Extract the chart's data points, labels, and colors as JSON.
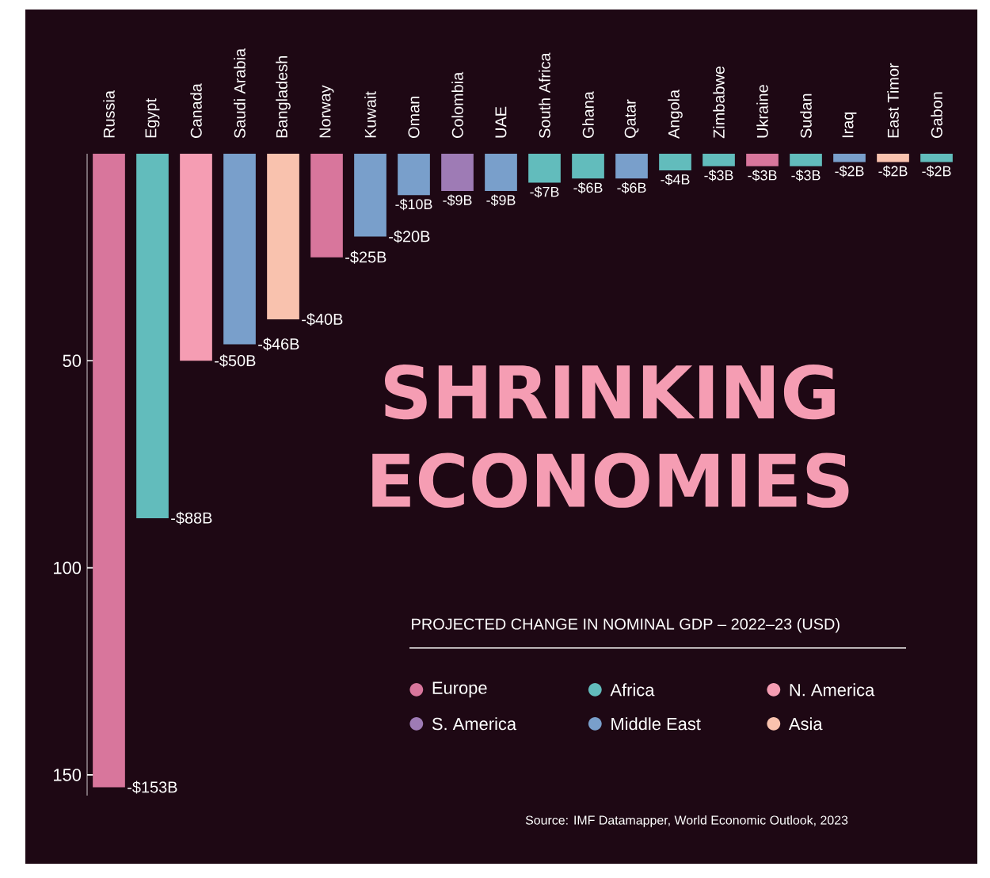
{
  "chart_data": {
    "type": "bar",
    "title": "SHRINKING ECONOMIES",
    "legend_title": "PROJECTED CHANGE IN NOMINAL GDP – 2022–23 (USD)",
    "categories": [
      "Russia",
      "Egypt",
      "Canada",
      "Saudi Arabia",
      "Bangladesh",
      "Norway",
      "Kuwait",
      "Oman",
      "Colombia",
      "UAE",
      "South Africa",
      "Ghana",
      "Qatar",
      "Angola",
      "Zimbabwe",
      "Ukraine",
      "Sudan",
      "Iraq",
      "East Timor",
      "Gabon"
    ],
    "series": [
      {
        "name": "Europe",
        "color": "#d8769c",
        "values": [
          153,
          null,
          null,
          null,
          null,
          25,
          null,
          null,
          null,
          null,
          null,
          null,
          null,
          null,
          null,
          3,
          null,
          null,
          null,
          null
        ]
      },
      {
        "name": "Africa",
        "color": "#62bcbc",
        "values": [
          null,
          88,
          null,
          null,
          null,
          null,
          null,
          null,
          null,
          null,
          7,
          6,
          null,
          4,
          3,
          null,
          3,
          null,
          null,
          2
        ]
      },
      {
        "name": "N. America",
        "color": "#f59db3",
        "values": [
          null,
          null,
          50,
          null,
          null,
          null,
          null,
          null,
          null,
          null,
          null,
          null,
          null,
          null,
          null,
          null,
          null,
          null,
          null,
          null
        ]
      },
      {
        "name": "S. America",
        "color": "#9e7bb5",
        "values": [
          null,
          null,
          null,
          null,
          null,
          null,
          null,
          null,
          9,
          null,
          null,
          null,
          null,
          null,
          null,
          null,
          null,
          null,
          null,
          null
        ]
      },
      {
        "name": "Middle East",
        "color": "#799fcb",
        "values": [
          null,
          null,
          null,
          46,
          null,
          null,
          20,
          10,
          null,
          9,
          null,
          null,
          6,
          null,
          null,
          null,
          null,
          2,
          null,
          null
        ]
      },
      {
        "name": "Asia",
        "color": "#f9c2ae",
        "values": [
          null,
          null,
          null,
          null,
          40,
          null,
          null,
          null,
          null,
          null,
          null,
          null,
          null,
          null,
          null,
          null,
          null,
          null,
          2,
          null
        ]
      }
    ],
    "value_labels": [
      "-$153B",
      "-$88B",
      "-$50B",
      "-$46B",
      "-$40B",
      "-$25B",
      "-$20B",
      "-$10B",
      "-$9B",
      "-$9B",
      "-$7B",
      "-$6B",
      "-$6B",
      "-$4B",
      "-$3B",
      "-$3B",
      "-$3B",
      "-$2B",
      "-$2B",
      "-$2B"
    ],
    "ylim": [
      155,
      0
    ],
    "yticks": [
      50,
      100,
      150
    ],
    "legend": "bottom right",
    "annotations": [
      "Source: IMF Datamapper, World Economic Outlook, 2023"
    ]
  }
}
